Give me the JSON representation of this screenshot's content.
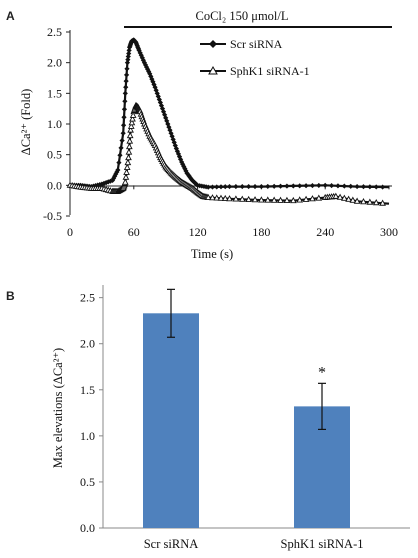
{
  "chart_data": [
    {
      "panel": "A",
      "type": "line",
      "annotation": "CoCl₂ 150 μmol/L",
      "xlabel": "Time (s)",
      "ylabel": "ΔCa²⁺ (Fold)",
      "xlim": [
        0,
        300
      ],
      "ylim": [
        -0.5,
        2.5
      ],
      "xticks": [
        "0",
        "60",
        "120",
        "180",
        "240",
        "300"
      ],
      "yticks": [
        "-0.5",
        "0.0",
        "0.5",
        "1.0",
        "1.5",
        "2.0",
        "2.5"
      ],
      "legend_position": "top-right",
      "series": [
        {
          "name": "Scr siRNA",
          "marker": "diamond",
          "x": [
            0,
            10,
            20,
            30,
            40,
            45,
            50,
            52,
            54,
            56,
            58,
            60,
            62,
            65,
            70,
            75,
            80,
            85,
            90,
            95,
            100,
            105,
            110,
            115,
            120,
            130,
            150,
            180,
            210,
            240,
            270,
            300
          ],
          "y": [
            0.0,
            0.0,
            -0.02,
            0.02,
            0.08,
            0.25,
            0.85,
            1.5,
            2.0,
            2.25,
            2.35,
            2.37,
            2.33,
            2.2,
            2.0,
            1.82,
            1.6,
            1.35,
            1.1,
            0.85,
            0.6,
            0.38,
            0.2,
            0.08,
            0.0,
            -0.03,
            -0.02,
            -0.02,
            -0.01,
            0.0,
            -0.02,
            -0.03
          ]
        },
        {
          "name": "SphK1 siRNA-1",
          "marker": "triangle",
          "x": [
            0,
            10,
            20,
            30,
            40,
            45,
            50,
            52,
            55,
            57,
            60,
            62,
            64,
            66,
            70,
            75,
            80,
            85,
            90,
            95,
            100,
            105,
            110,
            115,
            120,
            125,
            130,
            150,
            180,
            210,
            240,
            250,
            270,
            300
          ],
          "y": [
            0.0,
            -0.03,
            -0.05,
            -0.05,
            -0.1,
            -0.1,
            -0.05,
            0.05,
            0.45,
            0.9,
            1.2,
            1.3,
            1.27,
            1.2,
            1.0,
            0.8,
            0.65,
            0.45,
            0.3,
            0.2,
            0.12,
            0.05,
            0.0,
            -0.05,
            -0.12,
            -0.18,
            -0.2,
            -0.22,
            -0.24,
            -0.25,
            -0.2,
            -0.18,
            -0.26,
            -0.3
          ]
        }
      ]
    },
    {
      "panel": "B",
      "type": "bar",
      "categories": [
        "Scr siRNA",
        "SphK1 siRNA-1"
      ],
      "values": [
        2.33,
        1.32
      ],
      "errors": [
        0.26,
        0.25
      ],
      "significance": [
        "",
        "*"
      ],
      "ylabel": "Max elevations (ΔCa²⁺)",
      "ylim": [
        0.0,
        2.8
      ],
      "yticks": [
        "0.0",
        "0.5",
        "1.0",
        "1.5",
        "2.0",
        "2.5"
      ],
      "bar_color": "#4f81bd"
    }
  ]
}
